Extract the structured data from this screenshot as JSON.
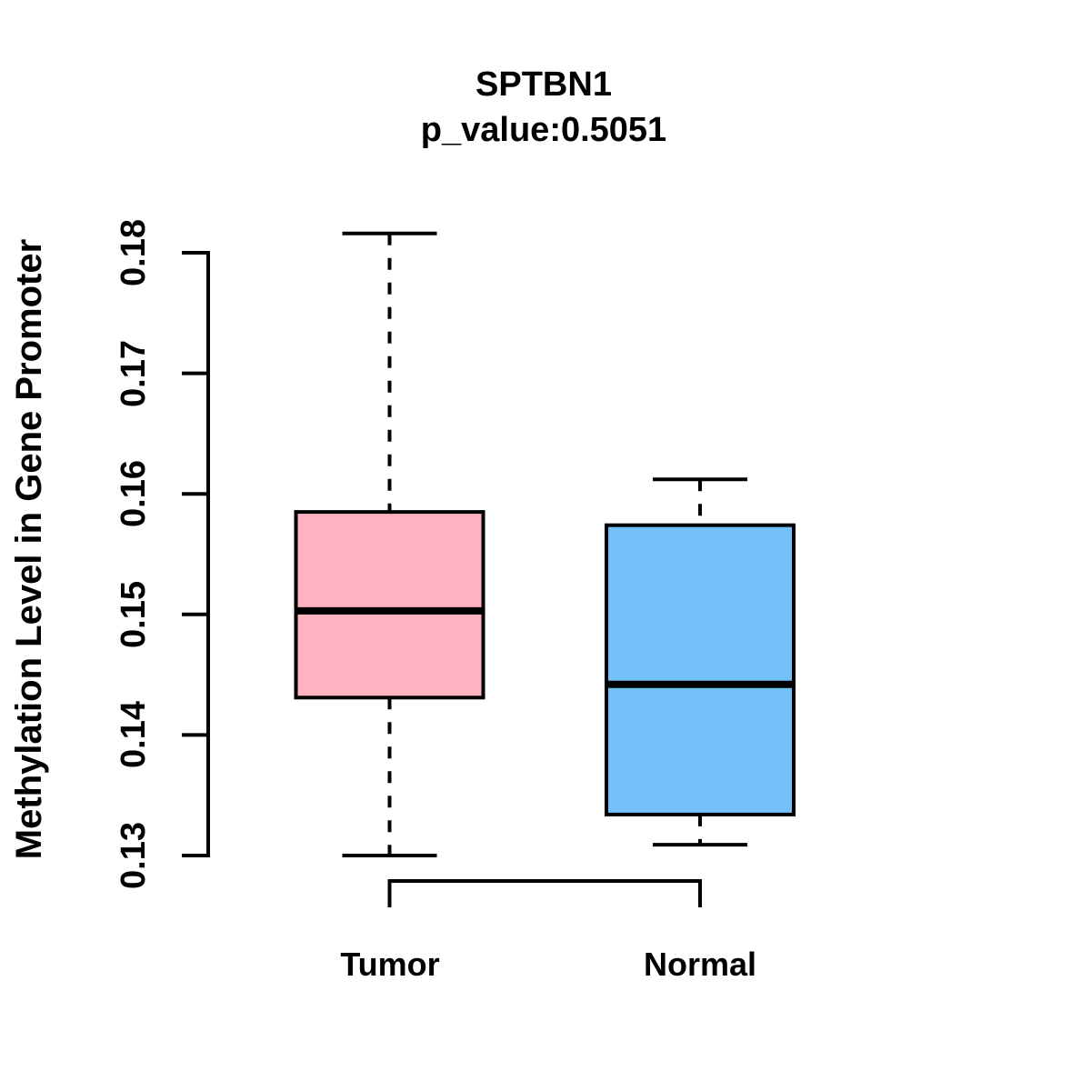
{
  "chart_data": {
    "type": "boxplot",
    "title": "SPTBN1",
    "subtitle": "p_value:0.5051",
    "ylabel": "Methylation Level in Gene Promoter",
    "xlabel": "",
    "ylim": [
      0.126,
      0.184
    ],
    "yticks": [
      0.13,
      0.14,
      0.15,
      0.16,
      0.17,
      0.18
    ],
    "ytick_labels": [
      "0.13",
      "0.14",
      "0.15",
      "0.16",
      "0.17",
      "0.18"
    ],
    "grid": false,
    "legend": "none",
    "categories": [
      "Tumor",
      "Normal"
    ],
    "series": [
      {
        "name": "Tumor",
        "fill_color": "#FFB3C1",
        "stats": {
          "whisker_low": 0.13,
          "q1": 0.1431,
          "median": 0.1503,
          "q3": 0.1585,
          "whisker_high": 0.1816
        }
      },
      {
        "name": "Normal",
        "fill_color": "#73BFF7",
        "stats": {
          "whisker_low": 0.1309,
          "q1": 0.1334,
          "median": 0.1442,
          "q3": 0.1574,
          "whisker_high": 0.1612
        }
      }
    ],
    "stroke_color": "#000000",
    "background_color": "#FFFFFF",
    "whisker_style": "dashed"
  }
}
